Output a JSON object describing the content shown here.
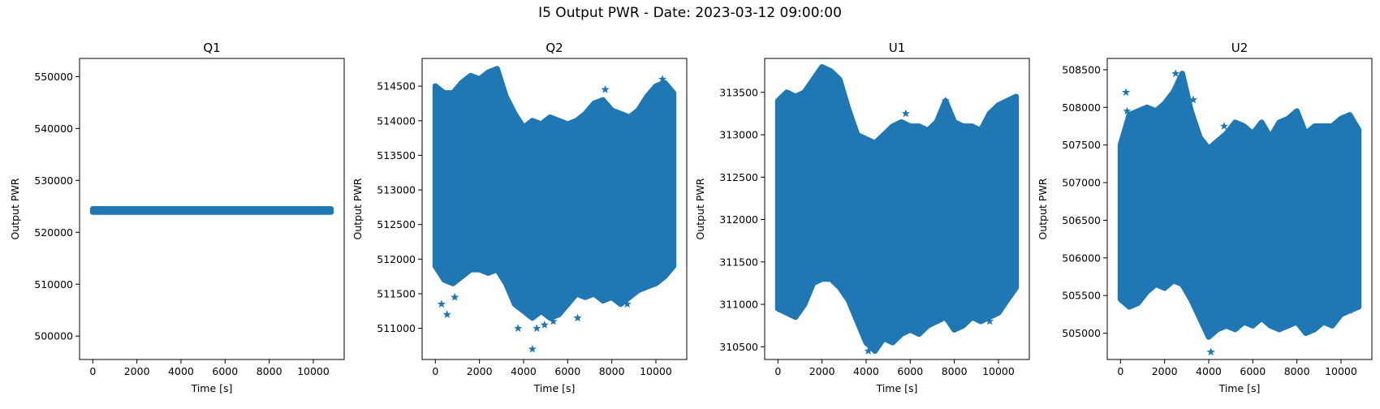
{
  "figure": {
    "suptitle": "I5 Output PWR - Date: 2023-03-12 09:00:00",
    "series_color": "#1f77b4"
  },
  "chart_data": [
    {
      "type": "scatter",
      "title": "Q1",
      "xlabel": "Time [s]",
      "ylabel": "Output PWR",
      "xlim": [
        -600,
        11400
      ],
      "ylim": [
        495500,
        553500
      ],
      "xticks": [
        0,
        2000,
        4000,
        6000,
        8000,
        10000
      ],
      "yticks": [
        500000,
        510000,
        520000,
        530000,
        540000,
        550000
      ],
      "grid": false,
      "marker": "star",
      "envelope": {
        "x": [
          0,
          10800
        ],
        "upper": [
          524500,
          524500
        ],
        "lower": [
          523900,
          523900
        ]
      },
      "outliers": []
    },
    {
      "type": "scatter",
      "title": "Q2",
      "xlabel": "Time [s]",
      "ylabel": "Output PWR",
      "xlim": [
        -600,
        11400
      ],
      "ylim": [
        510550,
        514900
      ],
      "xticks": [
        0,
        2000,
        4000,
        6000,
        8000,
        10000
      ],
      "yticks": [
        511000,
        511500,
        512000,
        512500,
        513000,
        513500,
        514000,
        514500
      ],
      "grid": false,
      "marker": "star",
      "envelope": {
        "x": [
          0,
          400,
          800,
          1200,
          1600,
          2000,
          2400,
          2800,
          3200,
          3600,
          4000,
          4400,
          4800,
          5200,
          5600,
          6000,
          6400,
          6800,
          7200,
          7600,
          8000,
          8400,
          8800,
          9200,
          9600,
          10000,
          10400,
          10800
        ],
        "upper": [
          514500,
          514400,
          514400,
          514550,
          514650,
          514600,
          514700,
          514750,
          514350,
          514100,
          513900,
          514000,
          513950,
          514050,
          514000,
          513950,
          514000,
          514100,
          514250,
          514300,
          514150,
          514100,
          514050,
          514150,
          514350,
          514500,
          514550,
          514400
        ],
        "lower": [
          511900,
          511700,
          511650,
          511750,
          511850,
          511850,
          511800,
          511850,
          511650,
          511350,
          511250,
          511150,
          511250,
          511150,
          511200,
          511350,
          511500,
          511450,
          511500,
          511400,
          511450,
          511350,
          511450,
          511550,
          511600,
          511650,
          511750,
          511900
        ]
      },
      "outliers": [
        [
          280,
          511350
        ],
        [
          530,
          511200
        ],
        [
          880,
          511450
        ],
        [
          3750,
          511000
        ],
        [
          4400,
          510700
        ],
        [
          4600,
          511000
        ],
        [
          4950,
          511050
        ],
        [
          5350,
          511100
        ],
        [
          6450,
          511150
        ],
        [
          7700,
          514450
        ],
        [
          8700,
          511350
        ],
        [
          10300,
          514600
        ]
      ]
    },
    {
      "type": "scatter",
      "title": "U1",
      "xlabel": "Time [s]",
      "ylabel": "Output PWR",
      "xlim": [
        -600,
        11400
      ],
      "ylim": [
        310350,
        313900
      ],
      "xticks": [
        0,
        2000,
        4000,
        6000,
        8000,
        10000
      ],
      "yticks": [
        310500,
        311000,
        311500,
        312000,
        312500,
        313000,
        313500
      ],
      "grid": false,
      "marker": "star",
      "envelope": {
        "x": [
          0,
          400,
          800,
          1200,
          1600,
          2000,
          2400,
          2800,
          3200,
          3600,
          4000,
          4400,
          4800,
          5200,
          5600,
          6000,
          6400,
          6800,
          7200,
          7600,
          8000,
          8400,
          8800,
          9200,
          9600,
          10000,
          10400,
          10800
        ],
        "upper": [
          313400,
          313500,
          313450,
          313500,
          313650,
          313800,
          313750,
          313650,
          313300,
          313000,
          312950,
          312900,
          313000,
          313100,
          313150,
          313100,
          313100,
          313050,
          313150,
          313400,
          313150,
          313100,
          313100,
          313050,
          313250,
          313350,
          313400,
          313450
        ],
        "lower": [
          310950,
          310900,
          310850,
          311000,
          311250,
          311300,
          311300,
          311200,
          311050,
          310800,
          310550,
          310450,
          310600,
          310550,
          310650,
          310700,
          310650,
          310750,
          310800,
          310850,
          310700,
          310750,
          310850,
          310800,
          310850,
          310900,
          311050,
          311200
        ]
      },
      "outliers": [
        [
          4100,
          310450
        ],
        [
          4300,
          310500
        ],
        [
          5800,
          313250
        ],
        [
          7600,
          313400
        ],
        [
          9600,
          310800
        ]
      ]
    },
    {
      "type": "scatter",
      "title": "U2",
      "xlabel": "Time [s]",
      "ylabel": "Output PWR",
      "xlim": [
        -600,
        11400
      ],
      "ylim": [
        504650,
        508650
      ],
      "xticks": [
        0,
        2000,
        4000,
        6000,
        8000,
        10000
      ],
      "yticks": [
        505000,
        505500,
        506000,
        506500,
        507000,
        507500,
        508000,
        508500
      ],
      "grid": false,
      "marker": "star",
      "envelope": {
        "x": [
          0,
          400,
          800,
          1200,
          1600,
          2000,
          2400,
          2800,
          3200,
          3600,
          4000,
          4400,
          4800,
          5200,
          5600,
          6000,
          6400,
          6800,
          7200,
          7600,
          8000,
          8400,
          8800,
          9200,
          9600,
          10000,
          10400,
          10800
        ],
        "upper": [
          507500,
          507900,
          507950,
          508000,
          507950,
          508050,
          508200,
          508450,
          507950,
          507600,
          507450,
          507550,
          507650,
          507800,
          507750,
          507650,
          507800,
          507600,
          507800,
          507850,
          507950,
          507650,
          507750,
          507750,
          507750,
          507850,
          507900,
          507700
        ],
        "lower": [
          505450,
          505350,
          505400,
          505550,
          505650,
          505600,
          505700,
          505650,
          505450,
          505200,
          504950,
          505050,
          505100,
          505050,
          505150,
          505100,
          505200,
          505100,
          505050,
          505100,
          505150,
          505000,
          505050,
          505150,
          505100,
          505250,
          505300,
          505350
        ]
      },
      "outliers": [
        [
          250,
          508200
        ],
        [
          300,
          507950
        ],
        [
          2500,
          508450
        ],
        [
          3300,
          508100
        ],
        [
          4100,
          504750
        ],
        [
          4700,
          507750
        ],
        [
          5300,
          507600
        ],
        [
          6500,
          507550
        ],
        [
          10400,
          505300
        ]
      ]
    }
  ]
}
